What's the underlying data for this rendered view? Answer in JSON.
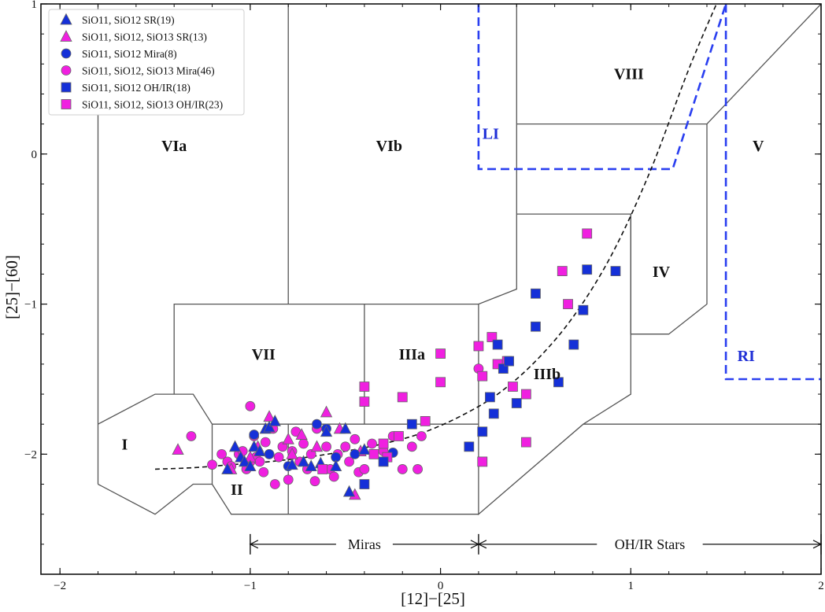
{
  "chart_data": {
    "type": "scatter",
    "title": "",
    "xlabel": "[12]−[25]",
    "ylabel": "[25]−[60]",
    "xlim": [
      -2.1,
      2.0
    ],
    "ylim": [
      -2.8,
      1.0
    ],
    "xticks": [
      -2,
      -1,
      0,
      1,
      2
    ],
    "xtick_labels": [
      "−2",
      "−1",
      "0",
      "1",
      "2"
    ],
    "yticks": [
      -2,
      -1,
      0,
      1
    ],
    "ytick_labels": [
      "−2",
      "−1",
      "0",
      "1"
    ],
    "colors": {
      "blue": "#1530d8",
      "magenta": "#f020e0",
      "region_line": "#555555",
      "dashed_region": "#2a3ff0"
    },
    "legend": {
      "position": "top-left",
      "entries": [
        {
          "label": "SiO11, SiO12 SR(19)",
          "marker": "triangle",
          "color": "blue"
        },
        {
          "label": "SiO11, SiO12, SiO13 SR(13)",
          "marker": "triangle",
          "color": "magenta"
        },
        {
          "label": "SiO11, SiO12 Mira(8)",
          "marker": "circle",
          "color": "blue"
        },
        {
          "label": "SiO11, SiO12, SiO13 Mira(46)",
          "marker": "circle",
          "color": "magenta"
        },
        {
          "label": "SiO11, SiO12 OH/IR(18)",
          "marker": "square",
          "color": "blue"
        },
        {
          "label": "SiO11, SiO12, SiO13 OH/IR(23)",
          "marker": "square",
          "color": "magenta"
        }
      ]
    },
    "regions": [
      {
        "label": "I",
        "vertices": [
          [
            -1.8,
            -1.8
          ],
          [
            -1.5,
            -1.6
          ],
          [
            -1.3,
            -1.6
          ],
          [
            -1.2,
            -1.8
          ],
          [
            -1.2,
            -2.2
          ],
          [
            -1.3,
            -2.2
          ],
          [
            -1.5,
            -2.4
          ],
          [
            -1.8,
            -2.2
          ]
        ],
        "label_at": [
          -1.66,
          -1.97
        ]
      },
      {
        "label": "II",
        "vertices": [
          [
            -1.2,
            -1.8
          ],
          [
            -0.8,
            -1.8
          ],
          [
            -0.8,
            -2.4
          ],
          [
            -1.1,
            -2.4
          ],
          [
            -1.2,
            -2.2
          ]
        ],
        "label_at": [
          -1.07,
          -2.27
        ]
      },
      {
        "label": "IIIa",
        "vertices": [
          [
            -0.4,
            -1.0
          ],
          [
            0.2,
            -1.0
          ],
          [
            0.2,
            -2.4
          ],
          [
            -0.8,
            -2.4
          ],
          [
            -0.8,
            -1.8
          ],
          [
            -0.4,
            -1.8
          ]
        ],
        "label_at": [
          -0.15,
          -1.37
        ]
      },
      {
        "label": "IIIb",
        "vertices": [
          [
            0.2,
            -1.0
          ],
          [
            0.4,
            -0.9
          ],
          [
            0.4,
            -0.4
          ],
          [
            1.0,
            -0.4
          ],
          [
            1.0,
            -1.6
          ],
          [
            0.75,
            -1.8
          ],
          [
            0.25,
            -2.25
          ],
          [
            0.2,
            -2.4
          ]
        ],
        "label_at": [
          0.56,
          -1.5
        ]
      },
      {
        "label": "IV",
        "vertices": [
          [
            1.0,
            -0.4
          ],
          [
            1.0,
            -1.2
          ],
          [
            1.2,
            -1.2
          ],
          [
            1.4,
            -1.0
          ],
          [
            1.4,
            0.2
          ]
        ],
        "label_at": [
          1.16,
          -0.82
        ]
      },
      {
        "label": "V",
        "vertices": [
          [
            1.4,
            0.2
          ],
          [
            2.0,
            1.0
          ],
          [
            2.0,
            -1.8
          ]
        ],
        "label_at": [
          1.67,
          0.02
        ]
      },
      {
        "label": "VIa",
        "vertices": [
          [
            -1.8,
            1.0
          ],
          [
            -1.8,
            -1.8
          ],
          [
            -1.5,
            -1.6
          ],
          [
            -1.4,
            -1.6
          ],
          [
            -1.4,
            -1.0
          ],
          [
            -0.8,
            -1.0
          ],
          [
            -0.8,
            1.0
          ]
        ],
        "label_at": [
          -1.4,
          0.02
        ]
      },
      {
        "label": "VIb",
        "vertices": [
          [
            -0.8,
            1.0
          ],
          [
            -0.8,
            -1.0
          ],
          [
            0.2,
            -1.0
          ],
          [
            0.4,
            -0.9
          ],
          [
            0.4,
            1.0
          ]
        ],
        "label_at": [
          -0.27,
          0.02
        ]
      },
      {
        "label": "VII",
        "vertices": [
          [
            -1.4,
            -1.0
          ],
          [
            -0.4,
            -1.0
          ],
          [
            -0.4,
            -1.8
          ],
          [
            -1.2,
            -1.8
          ],
          [
            -1.4,
            -1.6
          ]
        ],
        "label_at": [
          -0.93,
          -1.37
        ]
      },
      {
        "label": "VIII",
        "vertices": [
          [
            0.4,
            1.0
          ],
          [
            0.4,
            0.2
          ],
          [
            1.4,
            0.2
          ],
          [
            1.4,
            1.0
          ]
        ],
        "label_at": [
          0.99,
          0.5
        ]
      }
    ],
    "region_outline_segments": [
      [
        [
          -1.8,
          1.0
        ],
        [
          -1.8,
          -2.2
        ]
      ],
      [
        [
          -1.8,
          -1.8
        ],
        [
          -1.5,
          -1.6
        ],
        [
          -1.3,
          -1.6
        ],
        [
          -1.2,
          -1.8
        ]
      ],
      [
        [
          -1.8,
          -2.2
        ],
        [
          -1.5,
          -2.4
        ],
        [
          -1.3,
          -2.2
        ],
        [
          -1.2,
          -2.2
        ]
      ],
      [
        [
          -1.4,
          -1.6
        ],
        [
          -1.4,
          -1.0
        ],
        [
          0.2,
          -1.0
        ],
        [
          0.4,
          -0.9
        ],
        [
          0.4,
          1.0
        ]
      ],
      [
        [
          -1.2,
          -1.8
        ],
        [
          0.2,
          -1.8
        ]
      ],
      [
        [
          -1.2,
          -1.8
        ],
        [
          -1.2,
          -2.2
        ],
        [
          -1.1,
          -2.4
        ],
        [
          0.2,
          -2.4
        ]
      ],
      [
        [
          -0.8,
          1.0
        ],
        [
          -0.8,
          -1.0
        ]
      ],
      [
        [
          -0.8,
          -1.8
        ],
        [
          -0.8,
          -2.4
        ]
      ],
      [
        [
          -0.4,
          -1.0
        ],
        [
          -0.4,
          -1.8
        ]
      ],
      [
        [
          0.2,
          -1.0
        ],
        [
          0.2,
          -2.4
        ],
        [
          0.75,
          -1.8
        ],
        [
          1.0,
          -1.6
        ],
        [
          1.0,
          -0.4
        ],
        [
          0.4,
          -0.4
        ]
      ],
      [
        [
          1.0,
          -0.4
        ],
        [
          1.0,
          -1.2
        ],
        [
          1.2,
          -1.2
        ],
        [
          1.4,
          -1.0
        ],
        [
          1.4,
          0.2
        ],
        [
          0.4,
          0.2
        ]
      ],
      [
        [
          1.4,
          0.2
        ],
        [
          2.0,
          1.0
        ]
      ],
      [
        [
          0.75,
          -1.8
        ],
        [
          2.0,
          -1.8
        ]
      ]
    ],
    "dashed_regions": [
      {
        "label": "LI",
        "vertices": [
          [
            0.2,
            1.0
          ],
          [
            0.2,
            -0.1
          ],
          [
            1.22,
            -0.1
          ],
          [
            1.5,
            1.0
          ]
        ],
        "label_at": [
          0.22,
          0.1
        ]
      },
      {
        "label": "RI",
        "vertices": [
          [
            1.5,
            1.0
          ],
          [
            1.5,
            -1.5
          ],
          [
            2.0,
            -1.5
          ]
        ],
        "label_at": [
          1.56,
          -1.38
        ]
      }
    ],
    "curve": {
      "style": "dashed",
      "color": "#111111",
      "x": [
        -1.5,
        -1.3,
        -1.1,
        -0.9,
        -0.7,
        -0.5,
        -0.3,
        -0.1,
        0.1,
        0.3,
        0.5,
        0.7,
        0.9,
        1.1,
        1.3,
        1.45
      ],
      "y": [
        -2.1,
        -2.09,
        -2.07,
        -2.05,
        -2.02,
        -1.98,
        -1.93,
        -1.86,
        -1.75,
        -1.6,
        -1.38,
        -1.08,
        -0.67,
        -0.12,
        0.55,
        1.0
      ]
    },
    "ranges": [
      {
        "label": "Miras",
        "x_start": -1.0,
        "x_end": 0.2,
        "y": -2.6
      },
      {
        "label": "OH/IR Stars",
        "x_start": 0.2,
        "x_end": 2.0,
        "y": -2.6
      }
    ],
    "series": [
      {
        "name": "SiO11, SiO12 SR(19)",
        "marker": "triangle",
        "color": "blue",
        "points": [
          [
            -1.12,
            -2.1
          ],
          [
            -1.08,
            -1.95
          ],
          [
            -1.05,
            -2.02
          ],
          [
            -1.03,
            -2.05
          ],
          [
            -1.0,
            -2.08
          ],
          [
            -0.98,
            -1.95
          ],
          [
            -0.95,
            -1.98
          ],
          [
            -0.92,
            -1.83
          ],
          [
            -0.9,
            -1.82
          ],
          [
            -0.87,
            -1.78
          ],
          [
            -0.78,
            -2.07
          ],
          [
            -0.72,
            -2.05
          ],
          [
            -0.68,
            -2.08
          ],
          [
            -0.63,
            -2.06
          ],
          [
            -0.6,
            -1.85
          ],
          [
            -0.55,
            -2.08
          ],
          [
            -0.5,
            -1.83
          ],
          [
            -0.48,
            -2.25
          ],
          [
            -0.4,
            -1.97
          ]
        ]
      },
      {
        "name": "SiO11, SiO12, SiO13 SR(13)",
        "marker": "triangle",
        "color": "magenta",
        "points": [
          [
            -1.38,
            -1.97
          ],
          [
            -1.1,
            -2.1
          ],
          [
            -1.0,
            -2.02
          ],
          [
            -0.96,
            -1.95
          ],
          [
            -0.9,
            -1.75
          ],
          [
            -0.8,
            -1.9
          ],
          [
            -0.78,
            -2.0
          ],
          [
            -0.73,
            -1.87
          ],
          [
            -0.65,
            -1.95
          ],
          [
            -0.6,
            -1.72
          ],
          [
            -0.53,
            -1.83
          ],
          [
            -0.45,
            -2.27
          ],
          [
            -0.42,
            -1.98
          ]
        ]
      },
      {
        "name": "SiO11, SiO12 Mira(8)",
        "marker": "circle",
        "color": "blue",
        "points": [
          [
            -0.98,
            -1.87
          ],
          [
            -0.9,
            -2.0
          ],
          [
            -0.8,
            -2.08
          ],
          [
            -0.65,
            -1.8
          ],
          [
            -0.6,
            -1.83
          ],
          [
            -0.55,
            -2.02
          ],
          [
            -0.45,
            -2.0
          ],
          [
            -0.25,
            -1.99
          ]
        ]
      },
      {
        "name": "SiO11, SiO12, SiO13 Mira(46)",
        "marker": "circle",
        "color": "magenta",
        "points": [
          [
            -1.31,
            -1.88
          ],
          [
            -1.2,
            -2.07
          ],
          [
            -1.15,
            -2.0
          ],
          [
            -1.12,
            -2.05
          ],
          [
            -1.1,
            -2.08
          ],
          [
            -1.06,
            -2.0
          ],
          [
            -1.04,
            -1.98
          ],
          [
            -1.02,
            -2.1
          ],
          [
            -1.0,
            -2.05
          ],
          [
            -0.98,
            -1.88
          ],
          [
            -0.97,
            -2.02
          ],
          [
            -0.95,
            -2.05
          ],
          [
            -0.93,
            -2.12
          ],
          [
            -0.92,
            -1.92
          ],
          [
            -0.9,
            -2.0
          ],
          [
            -0.88,
            -1.83
          ],
          [
            -0.87,
            -2.2
          ],
          [
            -0.85,
            -2.02
          ],
          [
            -0.83,
            -1.95
          ],
          [
            -0.8,
            -2.17
          ],
          [
            -0.78,
            -1.98
          ],
          [
            -0.76,
            -1.85
          ],
          [
            -0.74,
            -2.05
          ],
          [
            -0.72,
            -1.93
          ],
          [
            -0.7,
            -2.1
          ],
          [
            -0.68,
            -2.0
          ],
          [
            -0.66,
            -2.18
          ],
          [
            -0.65,
            -1.83
          ],
          [
            -0.6,
            -1.95
          ],
          [
            -0.58,
            -2.1
          ],
          [
            -0.56,
            -2.15
          ],
          [
            -0.54,
            -2.0
          ],
          [
            -0.5,
            -1.95
          ],
          [
            -0.48,
            -2.05
          ],
          [
            -0.45,
            -1.9
          ],
          [
            -0.43,
            -2.12
          ],
          [
            -0.4,
            -2.1
          ],
          [
            -0.36,
            -1.93
          ],
          [
            -0.3,
            -1.98
          ],
          [
            -0.25,
            -1.88
          ],
          [
            -0.2,
            -2.1
          ],
          [
            -0.15,
            -1.95
          ],
          [
            -0.12,
            -2.1
          ],
          [
            -0.1,
            -1.88
          ],
          [
            -1.0,
            -1.68
          ],
          [
            0.2,
            -1.43
          ]
        ]
      },
      {
        "name": "SiO11, SiO12 OH/IR(18)",
        "marker": "square",
        "color": "blue",
        "points": [
          [
            -0.4,
            -2.2
          ],
          [
            -0.3,
            -2.05
          ],
          [
            -0.15,
            -1.8
          ],
          [
            0.15,
            -1.95
          ],
          [
            0.22,
            -1.85
          ],
          [
            0.26,
            -1.62
          ],
          [
            0.28,
            -1.73
          ],
          [
            0.3,
            -1.27
          ],
          [
            0.33,
            -1.43
          ],
          [
            0.36,
            -1.38
          ],
          [
            0.4,
            -1.66
          ],
          [
            0.5,
            -0.93
          ],
          [
            0.5,
            -1.15
          ],
          [
            0.62,
            -1.52
          ],
          [
            0.7,
            -1.27
          ],
          [
            0.75,
            -1.04
          ],
          [
            0.77,
            -0.77
          ],
          [
            0.92,
            -0.78
          ]
        ]
      },
      {
        "name": "SiO11, SiO12, SiO13 OH/IR(23)",
        "marker": "square",
        "color": "magenta",
        "points": [
          [
            -0.62,
            -2.1
          ],
          [
            -0.4,
            -1.55
          ],
          [
            -0.4,
            -1.65
          ],
          [
            -0.35,
            -2.0
          ],
          [
            -0.3,
            -1.93
          ],
          [
            -0.28,
            -2.02
          ],
          [
            -0.22,
            -1.88
          ],
          [
            -0.2,
            -1.62
          ],
          [
            -0.08,
            -1.78
          ],
          [
            0.0,
            -1.33
          ],
          [
            0.0,
            -1.52
          ],
          [
            0.2,
            -1.28
          ],
          [
            0.22,
            -1.48
          ],
          [
            0.22,
            -2.05
          ],
          [
            0.27,
            -1.22
          ],
          [
            0.3,
            -1.4
          ],
          [
            0.35,
            -1.38
          ],
          [
            0.38,
            -1.55
          ],
          [
            0.45,
            -1.92
          ],
          [
            0.45,
            -1.6
          ],
          [
            0.64,
            -0.78
          ],
          [
            0.67,
            -1.0
          ],
          [
            0.77,
            -0.53
          ]
        ]
      }
    ]
  }
}
